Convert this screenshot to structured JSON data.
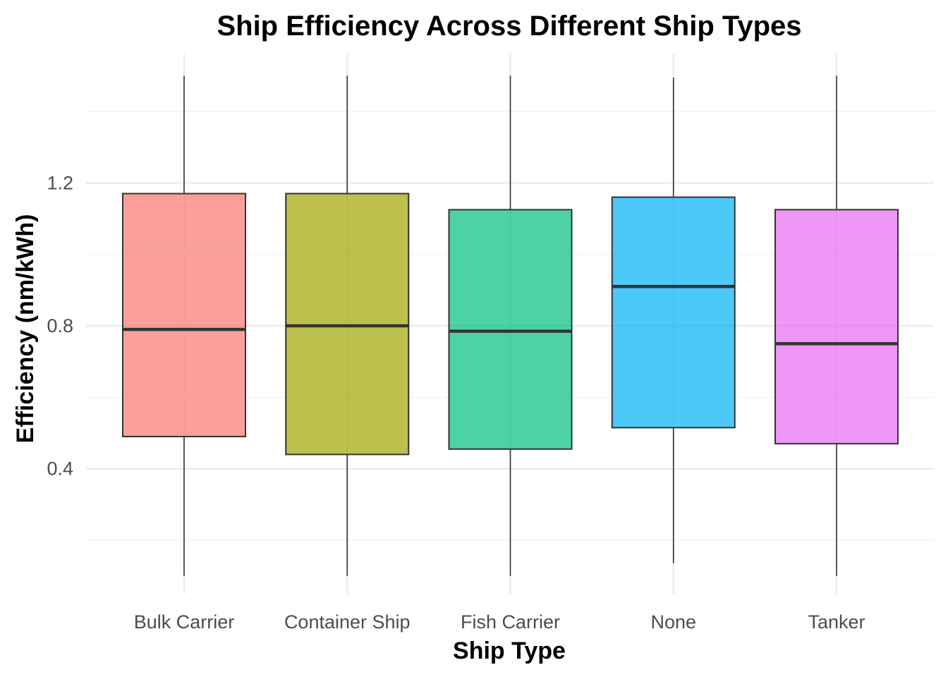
{
  "chart_data": {
    "type": "boxplot",
    "title": "Ship Efficiency Across Different Ship Types",
    "xlabel": "Ship Type",
    "ylabel": "Efficiency (nm/kWh)",
    "categories": [
      "Bulk Carrier",
      "Container Ship",
      "Fish Carrier",
      "None",
      "Tanker"
    ],
    "y_ticks": [
      0.4,
      0.8,
      1.2
    ],
    "y_tick_labels": [
      "0.4",
      "0.8",
      "1.2"
    ],
    "ylim": [
      0.05,
      1.55
    ],
    "grid": true,
    "legend": "none",
    "boxes": [
      {
        "category": "Bulk Carrier",
        "min": 0.1,
        "q1": 0.49,
        "median": 0.79,
        "q3": 1.17,
        "max": 1.5,
        "color": "#f8766d"
      },
      {
        "category": "Container Ship",
        "min": 0.1,
        "q1": 0.44,
        "median": 0.8,
        "q3": 1.17,
        "max": 1.5,
        "color": "#a3a500"
      },
      {
        "category": "Fish Carrier",
        "min": 0.1,
        "q1": 0.455,
        "median": 0.785,
        "q3": 1.125,
        "max": 1.5,
        "color": "#00bf7d"
      },
      {
        "category": "None",
        "min": 0.135,
        "q1": 0.515,
        "median": 0.91,
        "q3": 1.16,
        "max": 1.495,
        "color": "#00b0f6"
      },
      {
        "category": "Tanker",
        "min": 0.1,
        "q1": 0.47,
        "median": 0.75,
        "q3": 1.125,
        "max": 1.5,
        "color": "#e76bf3"
      }
    ]
  }
}
